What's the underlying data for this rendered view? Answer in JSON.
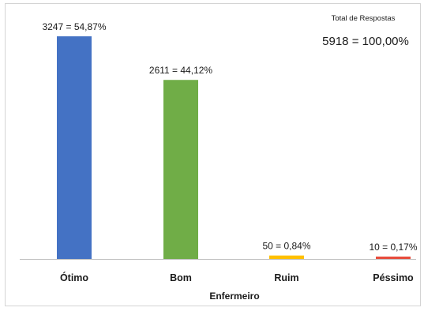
{
  "chart_data": {
    "type": "bar",
    "categories": [
      "Ótimo",
      "Bom",
      "Ruim",
      "Péssimo"
    ],
    "values": [
      3247,
      2611,
      50,
      10
    ],
    "percentages": [
      "54,87%",
      "44,12%",
      "0,84%",
      "0,17%"
    ],
    "data_labels": [
      "3247 = 54,87%",
      "2611 = 44,12%",
      "50 = 0,84%",
      "10 = 0,17%"
    ],
    "colors": [
      "#4472c4",
      "#70ad47",
      "#ffc000",
      "#e74c3c"
    ],
    "xlabel": "Enfermeiro",
    "ylabel": "",
    "ylim": [
      0,
      3300
    ],
    "grid": false,
    "annotation": {
      "title": "Total de Respostas",
      "value": "5918 = 100,00%"
    }
  }
}
